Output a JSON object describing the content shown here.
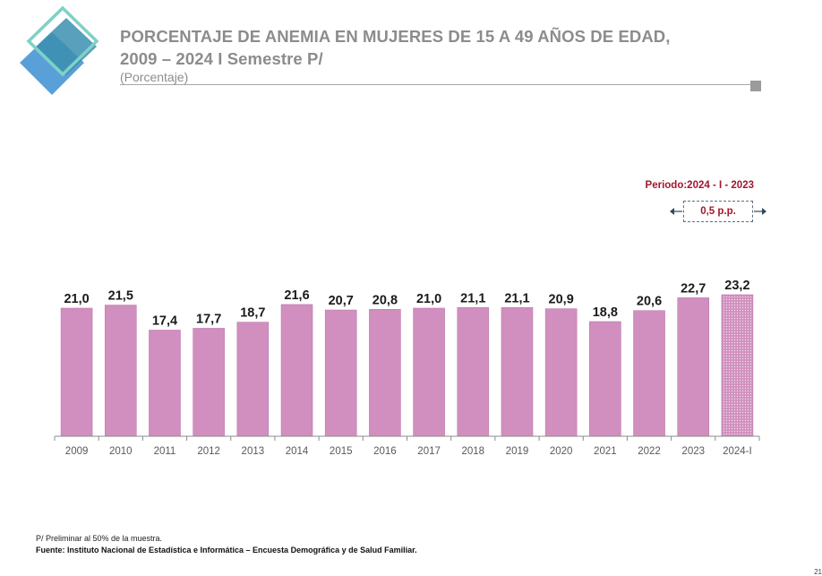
{
  "header": {
    "title_line1": "PORCENTAJE DE ANEMIA EN MUJERES DE 15 A 49 AÑOS DE EDAD,",
    "title_line2": "2009 – 2024 I Semestre P/",
    "subtitle": "(Porcentaje)"
  },
  "annotation": {
    "period_label": "Periodo:2024 - I - 2023",
    "delta": "0,5 p.p."
  },
  "chart_data": {
    "type": "bar",
    "categories": [
      "2009",
      "2010",
      "2011",
      "2012",
      "2013",
      "2014",
      "2015",
      "2016",
      "2017",
      "2018",
      "2019",
      "2020",
      "2021",
      "2022",
      "2023",
      "2024-I"
    ],
    "values": [
      21.0,
      21.5,
      17.4,
      17.7,
      18.7,
      21.6,
      20.7,
      20.8,
      21.0,
      21.1,
      21.1,
      20.9,
      18.8,
      20.6,
      22.7,
      23.2
    ],
    "labels": [
      "21,0",
      "21,5",
      "17,4",
      "17,7",
      "18,7",
      "21,6",
      "20,7",
      "20,8",
      "21,0",
      "21,1",
      "21,1",
      "20,9",
      "18,8",
      "20,6",
      "22,7",
      "23,2"
    ],
    "ylim": [
      0,
      23.2
    ],
    "preliminary_category": "2024-I",
    "colors": {
      "bar": "#d08fbe",
      "bar_border": "#bf7aae",
      "axis": "#8c8c8c",
      "tick_text": "#595959",
      "label_text": "#1a1a1a"
    },
    "grid": false,
    "legend": "none"
  },
  "footer": {
    "note": "P/ Preliminar al 50% de la muestra.",
    "source": "Fuente: Instituto Nacional de Estadística e Informática – Encuesta Demográfica y de Salud Familiar.",
    "page": "21"
  }
}
